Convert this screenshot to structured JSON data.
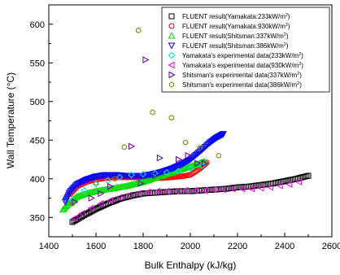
{
  "chart_data": {
    "type": "scatter",
    "xlabel": "Bulk Enthalpy (kJ/kg)",
    "ylabel": "Wall Temperature (°C)",
    "xlim": [
      1400,
      2600
    ],
    "ylim": [
      325,
      625
    ],
    "xticks": [
      1400,
      1600,
      1800,
      2000,
      2200,
      2400,
      2600
    ],
    "yticks": [
      350,
      400,
      450,
      500,
      550,
      600
    ],
    "x_tick_labels": [
      "1400",
      "1600",
      "1800",
      "2000",
      "2200",
      "2400",
      "2600"
    ],
    "y_tick_labels": [
      "350",
      "400",
      "450",
      "500",
      "550",
      "600"
    ],
    "legend_placement": "top-right",
    "grid": false,
    "series": [
      {
        "name": "FLUENT result(Yamakata:233kW/m²)",
        "marker": "square",
        "color": "#000000",
        "x": [
          1500,
          1550,
          1600,
          1650,
          1700,
          1750,
          1800,
          1850,
          1900,
          1950,
          2000,
          2050,
          2100,
          2150,
          2200,
          2250,
          2300,
          2350,
          2400,
          2450,
          2500
        ],
        "y": [
          344,
          353,
          361,
          368,
          374,
          378,
          381,
          382,
          383,
          384,
          384,
          385,
          386,
          387,
          389,
          390,
          392,
          394,
          397,
          400,
          404
        ]
      },
      {
        "name": "FLUENT result(Yamakata:930kW/m²)",
        "marker": "circle",
        "color": "#ff0000",
        "x": [
          1490,
          1520,
          1560,
          1600,
          1640,
          1680,
          1720,
          1760,
          1800,
          1840,
          1880,
          1920,
          1960,
          2000,
          2040,
          2070
        ],
        "y": [
          380,
          390,
          396,
          399,
          401,
          402,
          402,
          402,
          402,
          401,
          401,
          402,
          403,
          405,
          413,
          421
        ]
      },
      {
        "name": "FLUENT result(Shitsman:337kW/m²)",
        "marker": "triangle-up",
        "color": "#00dd00",
        "x": [
          1460,
          1490,
          1520,
          1560,
          1600,
          1640,
          1680,
          1720,
          1760,
          1800,
          1840,
          1880,
          1920,
          1960,
          2000,
          2040,
          2060
        ],
        "y": [
          360,
          370,
          377,
          381,
          384,
          386,
          388,
          390,
          393,
          396,
          400,
          404,
          408,
          412,
          416,
          420,
          422
        ]
      },
      {
        "name": "FLUENT result(Shitsman:386kW/m²)",
        "marker": "triangle-down",
        "color": "#0000ff",
        "x": [
          1470,
          1490,
          1520,
          1560,
          1600,
          1640,
          1680,
          1720,
          1760,
          1800,
          1840,
          1880,
          1920,
          1960,
          2000,
          2040,
          2080,
          2110,
          2140
        ],
        "y": [
          370,
          383,
          393,
          399,
          403,
          405,
          405,
          404,
          404,
          404,
          406,
          409,
          413,
          418,
          425,
          435,
          446,
          453,
          458
        ]
      },
      {
        "name": "Yamakata's experimental data(233kW/m²)",
        "marker": "diamond",
        "color": "#00e5ee",
        "x": [
          1500,
          1550,
          1600,
          1650,
          1700,
          1750,
          1800,
          1850,
          1900,
          1950,
          2000,
          2050
        ],
        "y": [
          372,
          385,
          393,
          398,
          402,
          405,
          406,
          407,
          408,
          410,
          413,
          417
        ]
      },
      {
        "name": "Yamakata's experimental data(930kW/m²)",
        "marker": "triangle-left",
        "color": "#ff00ff",
        "x": [
          1510,
          1540,
          1580,
          1620,
          1660,
          1700,
          1740,
          1780,
          1820,
          1860,
          1900,
          1940,
          1980,
          2020,
          2060,
          2100,
          2140,
          2180,
          2220,
          2260,
          2300,
          2340,
          2380,
          2420,
          2460
        ],
        "y": [
          349,
          355,
          362,
          368,
          372,
          376,
          379,
          381,
          383,
          384,
          384,
          384,
          385,
          385,
          385,
          386,
          386,
          387,
          387,
          387,
          388,
          389,
          391,
          393,
          396
        ]
      },
      {
        "name": "Shitsman's experimental data(337kW/m²)",
        "marker": "triangle-right",
        "color": "#6600aa",
        "x": [
          1510,
          1580,
          1620,
          1660,
          1750,
          1790,
          1810,
          1850,
          1870,
          1950,
          1990,
          2030,
          2060
        ],
        "y": [
          370,
          375,
          381,
          390,
          442,
          394,
          554,
          404,
          427,
          425,
          430,
          420,
          420
        ]
      },
      {
        "name": "Shitsman's experimental data(386kW/m²)",
        "marker": "hex",
        "color": "#808000",
        "x": [
          1500,
          1600,
          1680,
          1720,
          1780,
          1840,
          1920,
          1980,
          2040,
          2120
        ],
        "y": [
          368,
          395,
          400,
          441,
          592,
          486,
          479,
          447,
          440,
          430
        ]
      }
    ]
  }
}
